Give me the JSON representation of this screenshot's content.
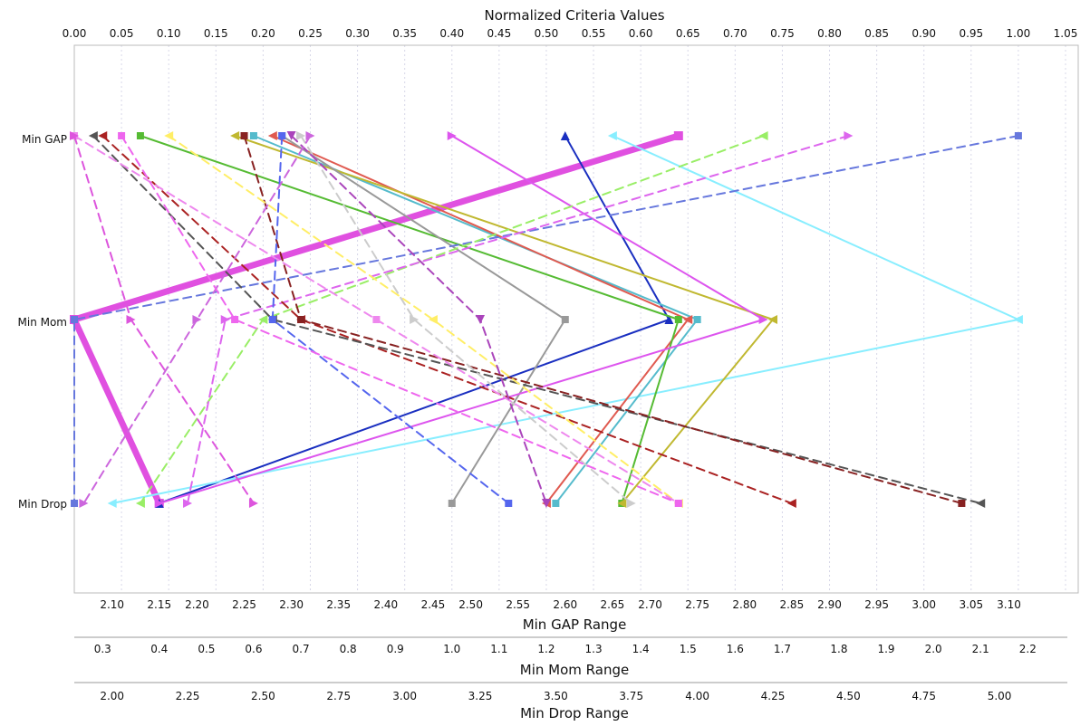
{
  "chart_data": {
    "type": "line",
    "top_axis": {
      "title": "Normalized Criteria Values",
      "ticks": [
        "0.00",
        "0.05",
        "0.10",
        "0.15",
        "0.20",
        "0.25",
        "0.30",
        "0.35",
        "0.40",
        "0.45",
        "0.50",
        "0.55",
        "0.60",
        "0.65",
        "0.70",
        "0.75",
        "0.80",
        "0.85",
        "0.90",
        "0.95",
        "1.00",
        "1.05"
      ],
      "range": [
        0,
        1.05
      ]
    },
    "criteria": [
      "Min GAP",
      "Min Mom",
      "Min Drop"
    ],
    "bottom_axes": [
      {
        "title": "Min GAP Range",
        "ticks": [
          "2.10",
          "2.15",
          "2.20",
          "2.25",
          "2.30",
          "2.35",
          "2.40",
          "2.45",
          "2.50",
          "2.55",
          "2.60",
          "2.65",
          "2.70",
          "2.75",
          "2.80",
          "2.85",
          "2.90",
          "2.95",
          "3.00",
          "3.05",
          "3.10"
        ],
        "tick_positions": [
          0.04,
          0.09,
          0.13,
          0.18,
          0.23,
          0.28,
          0.33,
          0.38,
          0.42,
          0.47,
          0.52,
          0.57,
          0.61,
          0.66,
          0.71,
          0.76,
          0.8,
          0.85,
          0.9,
          0.95,
          0.99
        ]
      },
      {
        "title": "Min Mom Range",
        "ticks": [
          "0.3",
          "0.4",
          "0.5",
          "0.6",
          "0.7",
          "0.8",
          "0.9",
          "1.0",
          "1.1",
          "1.2",
          "1.3",
          "1.4",
          "1.5",
          "1.6",
          "1.7",
          "1.8",
          "1.9",
          "2.0",
          "2.1",
          "2.2"
        ],
        "tick_positions": [
          0.03,
          0.09,
          0.14,
          0.19,
          0.24,
          0.29,
          0.34,
          0.4,
          0.45,
          0.5,
          0.55,
          0.6,
          0.65,
          0.7,
          0.75,
          0.81,
          0.86,
          0.91,
          0.96,
          1.01
        ]
      },
      {
        "title": "Min Drop Range",
        "ticks": [
          "2.00",
          "2.25",
          "2.50",
          "2.75",
          "3.00",
          "3.25",
          "3.50",
          "3.75",
          "4.00",
          "4.25",
          "4.50",
          "4.75",
          "5.00"
        ],
        "tick_positions": [
          0.04,
          0.12,
          0.2,
          0.28,
          0.35,
          0.43,
          0.51,
          0.59,
          0.66,
          0.74,
          0.82,
          0.9,
          0.98
        ]
      }
    ],
    "series": [
      {
        "values": [
          0.64,
          0.0,
          0.09
        ],
        "color": "#e050e0",
        "dash": false,
        "width": 7,
        "marker": "square"
      },
      {
        "values": [
          0.52,
          0.63,
          0.09
        ],
        "color": "#1a2fc0",
        "dash": false,
        "width": 2,
        "marker": "tri-up"
      },
      {
        "values": [
          0.57,
          1.0,
          0.04
        ],
        "color": "#88eeff",
        "dash": false,
        "width": 2,
        "marker": "tri-left"
      },
      {
        "values": [
          0.19,
          0.66,
          0.51
        ],
        "color": "#55bbcc",
        "dash": false,
        "width": 2,
        "marker": "square"
      },
      {
        "values": [
          0.21,
          0.65,
          0.5
        ],
        "color": "#e05a50",
        "dash": false,
        "width": 2,
        "marker": "tri-left"
      },
      {
        "values": [
          0.07,
          0.64,
          0.58
        ],
        "color": "#55bb33",
        "dash": false,
        "width": 2,
        "marker": "square"
      },
      {
        "values": [
          0.17,
          0.74,
          0.58
        ],
        "color": "#c0b830",
        "dash": false,
        "width": 2,
        "marker": "tri-left"
      },
      {
        "values": [
          0.22,
          0.52,
          0.4
        ],
        "color": "#999999",
        "dash": false,
        "width": 2,
        "marker": "square"
      },
      {
        "values": [
          0.4,
          0.73,
          0.09
        ],
        "color": "#dd55ee",
        "dash": false,
        "width": 2,
        "marker": "tri-right"
      },
      {
        "values": [
          1.0,
          0.0,
          0.0
        ],
        "color": "#6677dd",
        "dash": true,
        "width": 2,
        "marker": "square"
      },
      {
        "values": [
          0.73,
          0.2,
          0.07
        ],
        "color": "#99ee66",
        "dash": true,
        "width": 2,
        "marker": "tri-left"
      },
      {
        "values": [
          0.82,
          0.16,
          0.12
        ],
        "color": "#dd66ee",
        "dash": true,
        "width": 2,
        "marker": "tri-right"
      },
      {
        "values": [
          0.03,
          0.24,
          0.76
        ],
        "color": "#aa2222",
        "dash": true,
        "width": 2,
        "marker": "tri-left"
      },
      {
        "values": [
          0.02,
          0.21,
          0.96
        ],
        "color": "#555555",
        "dash": true,
        "width": 2,
        "marker": "tri-left"
      },
      {
        "values": [
          0.18,
          0.24,
          0.94
        ],
        "color": "#882222",
        "dash": true,
        "width": 2,
        "marker": "square"
      },
      {
        "values": [
          0.22,
          0.21,
          0.46
        ],
        "color": "#5566ee",
        "dash": true,
        "width": 2,
        "marker": "square"
      },
      {
        "values": [
          0.1,
          0.38,
          0.64
        ],
        "color": "#ffee66",
        "dash": true,
        "width": 2,
        "marker": "tri-left"
      },
      {
        "values": [
          0.24,
          0.36,
          0.59
        ],
        "color": "#cccccc",
        "dash": true,
        "width": 2,
        "marker": "tri-right"
      },
      {
        "values": [
          0.0,
          0.32,
          0.64
        ],
        "color": "#ee88ee",
        "dash": true,
        "width": 2,
        "marker": "square"
      },
      {
        "values": [
          0.23,
          0.43,
          0.5
        ],
        "color": "#aa44bb",
        "dash": true,
        "width": 2,
        "marker": "tri-down"
      },
      {
        "values": [
          0.0,
          0.06,
          0.19
        ],
        "color": "#dd55dd",
        "dash": true,
        "width": 2,
        "marker": "tri-right"
      },
      {
        "values": [
          0.25,
          0.13,
          0.01
        ],
        "color": "#cc66dd",
        "dash": true,
        "width": 2,
        "marker": "tri-right"
      },
      {
        "values": [
          0.05,
          0.17,
          0.64
        ],
        "color": "#ee66ee",
        "dash": true,
        "width": 2,
        "marker": "square"
      }
    ]
  }
}
